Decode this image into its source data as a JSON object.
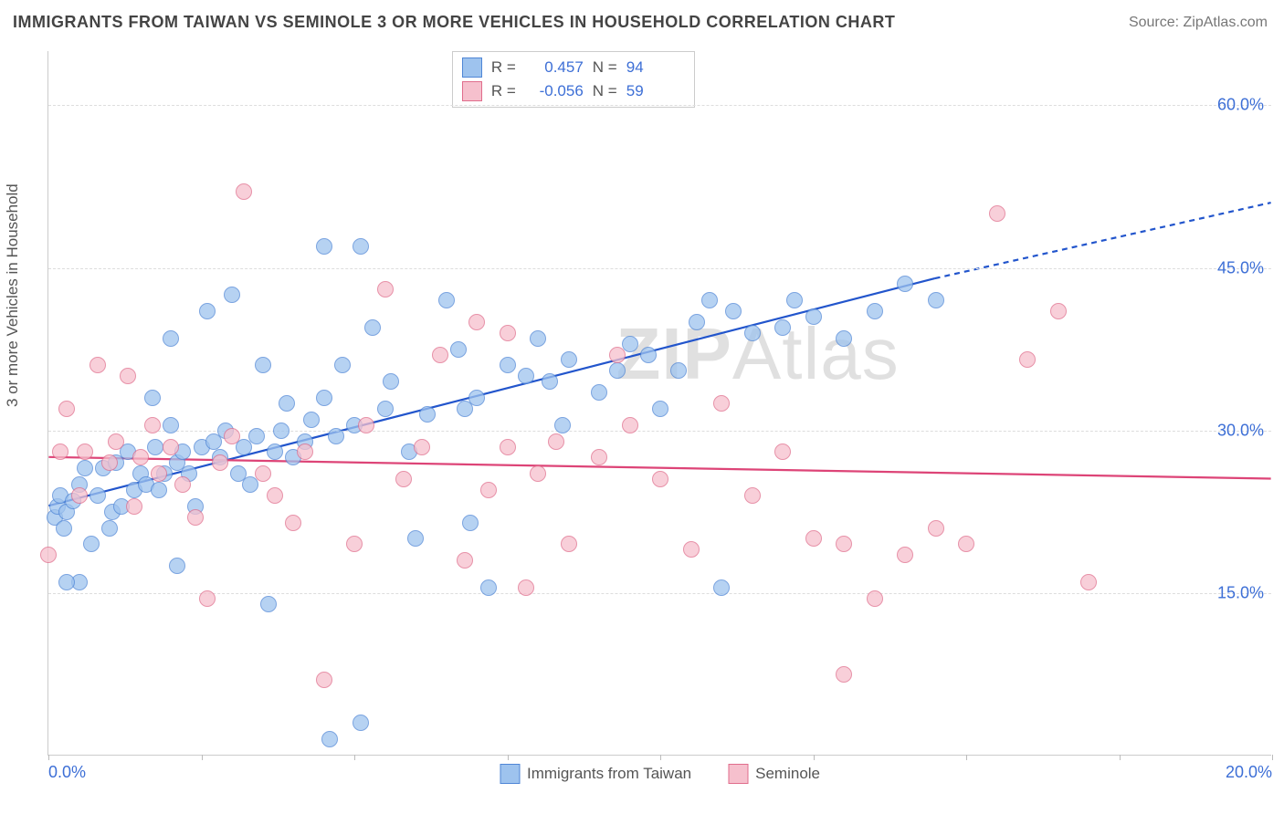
{
  "title": "IMMIGRANTS FROM TAIWAN VS SEMINOLE 3 OR MORE VEHICLES IN HOUSEHOLD CORRELATION CHART",
  "source": "Source: ZipAtlas.com",
  "watermark_zip": "ZIP",
  "watermark_atlas": "Atlas",
  "y_axis_label": "3 or more Vehicles in Household",
  "chart": {
    "type": "scatter",
    "xlim": [
      0,
      20
    ],
    "ylim": [
      0,
      65
    ],
    "x_ticks": [
      0,
      2.5,
      5,
      7.5,
      10,
      12.5,
      15,
      17.5,
      20
    ],
    "x_tick_labels": {
      "0": "0.0%",
      "20": "20.0%"
    },
    "y_ticks": [
      15,
      30,
      45,
      60
    ],
    "y_tick_labels": {
      "15": "15.0%",
      "30": "30.0%",
      "45": "45.0%",
      "60": "60.0%"
    },
    "background_color": "#ffffff",
    "grid_color": "#dddddd",
    "axis_color": "#cccccc",
    "tick_label_color": "#3d6fd6",
    "tick_label_fontsize": 18,
    "marker_radius": 9,
    "marker_border_width": 1.5,
    "marker_fill_opacity": 0.35,
    "series": [
      {
        "name": "Immigrants from Taiwan",
        "fill": "#9ec3ee",
        "stroke": "#4f86d6",
        "r_label": "R =",
        "r_value": "0.457",
        "n_label": "N =",
        "n_value": "94",
        "trend": {
          "x1": 0,
          "y1": 23,
          "x2_solid": 14.5,
          "y2_solid": 44,
          "x2_dash": 20,
          "y2_dash": 51,
          "color": "#2255cc",
          "width": 2.2
        },
        "points": [
          [
            0.1,
            22
          ],
          [
            0.15,
            23
          ],
          [
            0.2,
            24
          ],
          [
            0.25,
            21
          ],
          [
            0.3,
            22.5
          ],
          [
            0.4,
            23.5
          ],
          [
            0.5,
            25
          ],
          [
            0.5,
            16
          ],
          [
            0.6,
            26.5
          ],
          [
            0.7,
            19.5
          ],
          [
            0.8,
            24
          ],
          [
            0.9,
            26.5
          ],
          [
            1.0,
            21
          ],
          [
            1.05,
            22.5
          ],
          [
            1.1,
            27
          ],
          [
            1.2,
            23
          ],
          [
            1.3,
            28
          ],
          [
            1.4,
            24.5
          ],
          [
            1.5,
            26
          ],
          [
            1.6,
            25
          ],
          [
            1.7,
            33
          ],
          [
            1.75,
            28.5
          ],
          [
            1.8,
            24.5
          ],
          [
            1.9,
            26
          ],
          [
            2.0,
            30.5
          ],
          [
            2.0,
            38.5
          ],
          [
            2.1,
            27
          ],
          [
            2.1,
            17.5
          ],
          [
            2.2,
            28
          ],
          [
            2.3,
            26
          ],
          [
            2.4,
            23
          ],
          [
            2.5,
            28.5
          ],
          [
            2.6,
            41
          ],
          [
            2.7,
            29
          ],
          [
            2.8,
            27.5
          ],
          [
            2.9,
            30
          ],
          [
            3.0,
            42.5
          ],
          [
            3.1,
            26
          ],
          [
            3.2,
            28.5
          ],
          [
            3.3,
            25
          ],
          [
            3.4,
            29.5
          ],
          [
            3.5,
            36
          ],
          [
            3.6,
            14
          ],
          [
            3.7,
            28
          ],
          [
            3.8,
            30
          ],
          [
            3.9,
            32.5
          ],
          [
            4.0,
            27.5
          ],
          [
            4.2,
            29
          ],
          [
            4.3,
            31
          ],
          [
            4.5,
            33
          ],
          [
            4.5,
            47
          ],
          [
            4.6,
            1.5
          ],
          [
            4.7,
            29.5
          ],
          [
            4.8,
            36
          ],
          [
            5.0,
            30.5
          ],
          [
            5.1,
            47
          ],
          [
            5.1,
            3
          ],
          [
            5.3,
            39.5
          ],
          [
            5.5,
            32
          ],
          [
            5.6,
            34.5
          ],
          [
            5.9,
            28
          ],
          [
            6.0,
            20
          ],
          [
            6.2,
            31.5
          ],
          [
            6.5,
            42
          ],
          [
            6.7,
            37.5
          ],
          [
            6.8,
            32
          ],
          [
            6.9,
            21.5
          ],
          [
            7.0,
            33
          ],
          [
            7.2,
            15.5
          ],
          [
            7.5,
            36
          ],
          [
            7.8,
            35
          ],
          [
            8.0,
            38.5
          ],
          [
            8.2,
            34.5
          ],
          [
            8.4,
            30.5
          ],
          [
            8.5,
            36.5
          ],
          [
            9.0,
            33.5
          ],
          [
            9.3,
            35.5
          ],
          [
            9.5,
            38
          ],
          [
            9.8,
            37
          ],
          [
            10.0,
            32
          ],
          [
            10.3,
            35.5
          ],
          [
            10.6,
            40
          ],
          [
            10.8,
            42
          ],
          [
            11.0,
            15.5
          ],
          [
            11.2,
            41
          ],
          [
            11.5,
            39
          ],
          [
            12.0,
            39.5
          ],
          [
            12.2,
            42
          ],
          [
            12.5,
            40.5
          ],
          [
            13.0,
            38.5
          ],
          [
            13.5,
            41
          ],
          [
            14.0,
            43.5
          ],
          [
            14.5,
            42
          ],
          [
            0.3,
            16
          ]
        ]
      },
      {
        "name": "Seminole",
        "fill": "#f6c0cd",
        "stroke": "#e06d8c",
        "r_label": "R =",
        "r_value": "-0.056",
        "n_label": "N =",
        "n_value": "59",
        "trend": {
          "x1": 0,
          "y1": 27.5,
          "x2_solid": 20,
          "y2_solid": 25.5,
          "x2_dash": 20,
          "y2_dash": 25.5,
          "color": "#dd4477",
          "width": 2.2
        },
        "points": [
          [
            0.0,
            18.5
          ],
          [
            0.2,
            28
          ],
          [
            0.3,
            32
          ],
          [
            0.5,
            24
          ],
          [
            0.6,
            28
          ],
          [
            0.8,
            36
          ],
          [
            1.0,
            27
          ],
          [
            1.1,
            29
          ],
          [
            1.3,
            35
          ],
          [
            1.4,
            23
          ],
          [
            1.5,
            27.5
          ],
          [
            1.7,
            30.5
          ],
          [
            1.8,
            26
          ],
          [
            2.0,
            28.5
          ],
          [
            2.2,
            25
          ],
          [
            2.4,
            22
          ],
          [
            2.6,
            14.5
          ],
          [
            2.8,
            27
          ],
          [
            3.0,
            29.5
          ],
          [
            3.2,
            52
          ],
          [
            3.5,
            26
          ],
          [
            3.7,
            24
          ],
          [
            4.0,
            21.5
          ],
          [
            4.2,
            28
          ],
          [
            4.5,
            7
          ],
          [
            5.0,
            19.5
          ],
          [
            5.2,
            30.5
          ],
          [
            5.5,
            43
          ],
          [
            5.8,
            25.5
          ],
          [
            6.1,
            28.5
          ],
          [
            6.4,
            37
          ],
          [
            6.8,
            18
          ],
          [
            7.0,
            40
          ],
          [
            7.2,
            24.5
          ],
          [
            7.5,
            28.5
          ],
          [
            7.8,
            15.5
          ],
          [
            8.0,
            26
          ],
          [
            8.3,
            29
          ],
          [
            8.5,
            19.5
          ],
          [
            9.0,
            27.5
          ],
          [
            9.3,
            37
          ],
          [
            9.5,
            30.5
          ],
          [
            10.0,
            25.5
          ],
          [
            10.5,
            19
          ],
          [
            11.0,
            32.5
          ],
          [
            11.5,
            24
          ],
          [
            12.0,
            28
          ],
          [
            12.5,
            20
          ],
          [
            13.0,
            19.5
          ],
          [
            13.5,
            14.5
          ],
          [
            14.0,
            18.5
          ],
          [
            14.5,
            21
          ],
          [
            15.0,
            19.5
          ],
          [
            15.5,
            50
          ],
          [
            16.0,
            36.5
          ],
          [
            16.5,
            41
          ],
          [
            17.0,
            16
          ],
          [
            13.0,
            7.5
          ],
          [
            7.5,
            39
          ]
        ]
      }
    ]
  }
}
